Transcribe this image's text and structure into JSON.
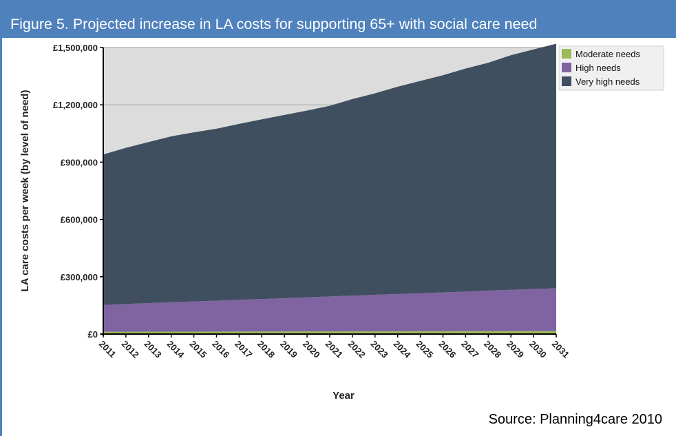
{
  "title": "Figure 5. Projected increase in LA costs for supporting 65+ with social care need",
  "source": "Source: Planning4care 2010",
  "colors": {
    "header": "#4f81bd",
    "plot_background": "#dcdcdc",
    "moderate": "#9bbb59",
    "high": "#8064a2",
    "very_high": "#3f4f5f"
  },
  "chart_data": {
    "type": "area",
    "stacked": true,
    "xlabel": "Year",
    "ylabel": "LA care costs per week (by level of need)",
    "x": [
      "2011",
      "2012",
      "2013",
      "2014",
      "2015",
      "2016",
      "2017",
      "2018",
      "2019",
      "2020",
      "2021",
      "2022",
      "2023",
      "2024",
      "2025",
      "2026",
      "2027",
      "2028",
      "2029",
      "2030",
      "2031"
    ],
    "ylim": [
      0,
      1500000
    ],
    "yticks": [
      0,
      300000,
      600000,
      900000,
      1200000,
      1500000
    ],
    "ytick_labels": [
      "£0",
      "£300,000",
      "£600,000",
      "£900,000",
      "£1,200,000",
      "£1,500,000"
    ],
    "grid": true,
    "legend": "top-right",
    "series": [
      {
        "name": "Moderate needs",
        "color": "#9bbb59",
        "values": [
          12000,
          12200,
          12400,
          12600,
          12800,
          13000,
          13200,
          13400,
          13600,
          13800,
          14000,
          14200,
          14400,
          14600,
          14800,
          15000,
          15200,
          15400,
          15600,
          15800,
          16000
        ]
      },
      {
        "name": "High needs",
        "color": "#8064a2",
        "values": [
          140000,
          145000,
          150000,
          154000,
          158000,
          162000,
          166000,
          170000,
          174000,
          178000,
          183000,
          187000,
          191000,
          195000,
          199000,
          203000,
          207000,
          212000,
          216000,
          220000,
          224000
        ]
      },
      {
        "name": "Very high needs",
        "color": "#3f4f5f",
        "values": [
          788000,
          817800,
          842600,
          868400,
          885200,
          900000,
          920800,
          940600,
          959400,
          978200,
          998000,
          1028800,
          1054600,
          1085400,
          1111200,
          1137000,
          1167800,
          1192600,
          1228400,
          1254200,
          1280000
        ]
      }
    ]
  }
}
